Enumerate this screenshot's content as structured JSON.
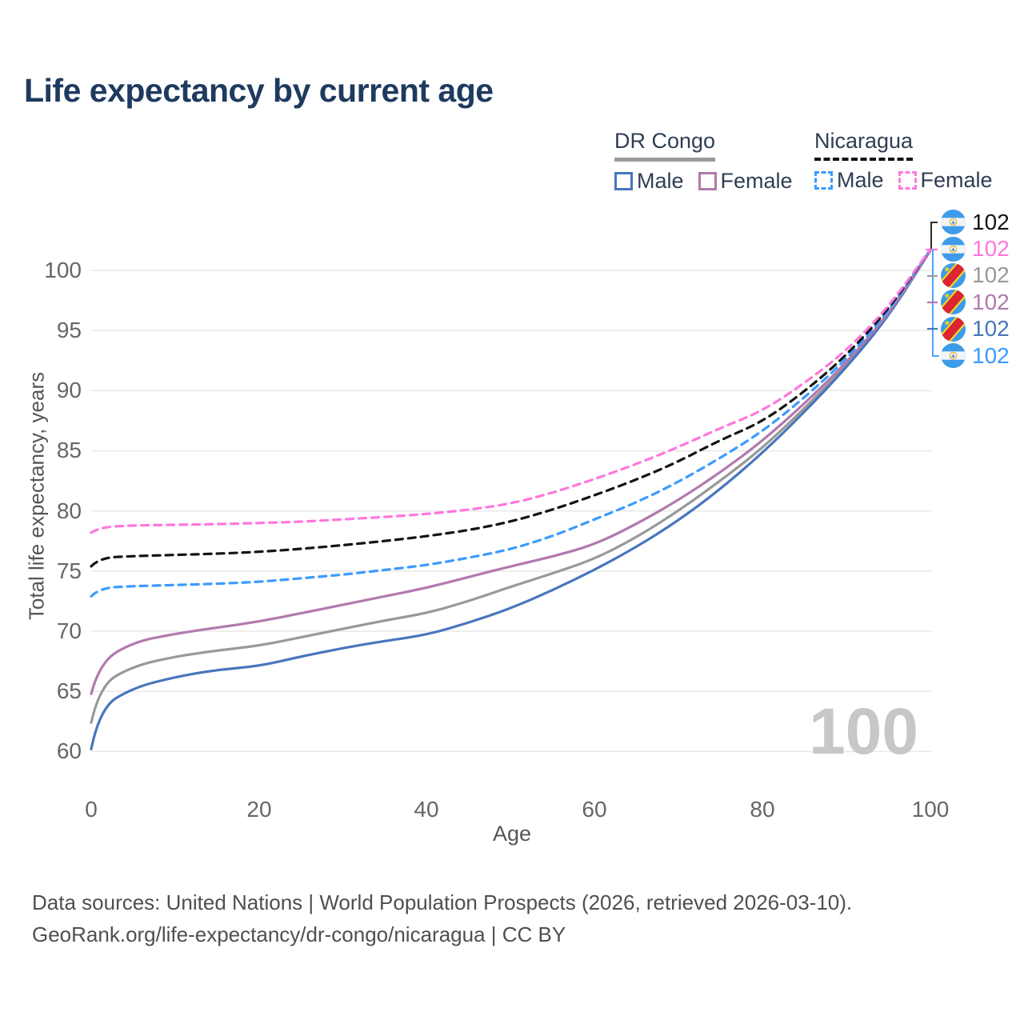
{
  "header": {
    "title": "Life expectancy by current age"
  },
  "legend": {
    "groups": [
      {
        "label": "DR Congo",
        "line_style": "solid",
        "underline_color": "#9a9a9a",
        "items": [
          {
            "label": "Male",
            "color": "#4876bd"
          },
          {
            "label": "Female",
            "color": "#b279ae"
          }
        ]
      },
      {
        "label": "Nicaragua",
        "line_style": "dashed",
        "underline_color": "#141414",
        "items": [
          {
            "label": "Male",
            "color": "#3b9bff"
          },
          {
            "label": "Female",
            "color": "#ff77dd"
          }
        ]
      }
    ]
  },
  "chart_data": {
    "type": "line",
    "title": "Life expectancy by current age",
    "xlabel": "Age",
    "ylabel": "Total life expectancy, years",
    "xlim": [
      0,
      100
    ],
    "ylim": [
      60,
      100
    ],
    "grid": "horizontal",
    "legend_position": "top-right",
    "x_ticks": [
      0,
      20,
      40,
      60,
      80,
      100
    ],
    "y_ticks": [
      100,
      95,
      90,
      85,
      80,
      75,
      70,
      65,
      60
    ],
    "watermark": "100",
    "x": [
      0,
      1,
      5,
      10,
      15,
      20,
      25,
      30,
      35,
      40,
      45,
      50,
      55,
      60,
      65,
      70,
      75,
      80,
      85,
      90,
      95,
      100
    ],
    "series": [
      {
        "name": "DR Congo Both sexes",
        "country": "DR Congo",
        "sex": "Both",
        "color": "#999999",
        "dash": "solid",
        "values": [
          62.4,
          65.5,
          67.1,
          67.9,
          68.4,
          68.8,
          69.5,
          70.2,
          70.9,
          71.5,
          72.5,
          73.7,
          74.8,
          76.0,
          77.8,
          80.0,
          82.5,
          85.2,
          88.5,
          92.1,
          96.2,
          101.6
        ]
      },
      {
        "name": "DR Congo Male",
        "country": "DR Congo",
        "sex": "Male",
        "color": "#4876bd",
        "dash": "solid",
        "values": [
          60.2,
          63.6,
          65.3,
          66.2,
          66.8,
          67.1,
          67.9,
          68.6,
          69.2,
          69.7,
          70.7,
          71.9,
          73.4,
          75.1,
          77.0,
          79.2,
          81.8,
          84.8,
          88.2,
          91.9,
          96.1,
          101.6
        ]
      },
      {
        "name": "DR Congo Female",
        "country": "DR Congo",
        "sex": "Female",
        "color": "#b279ae",
        "dash": "solid",
        "values": [
          64.8,
          67.4,
          69.1,
          69.8,
          70.3,
          70.8,
          71.5,
          72.2,
          72.9,
          73.6,
          74.5,
          75.4,
          76.2,
          77.2,
          78.9,
          80.9,
          83.2,
          85.8,
          88.9,
          92.3,
          96.3,
          101.6
        ]
      },
      {
        "name": "Nicaragua Male",
        "country": "Nicaragua",
        "sex": "Male",
        "color": "#3b9bff",
        "dash": "dashed",
        "values": [
          72.9,
          73.6,
          73.75,
          73.85,
          73.95,
          74.1,
          74.4,
          74.7,
          75.1,
          75.5,
          76.1,
          76.8,
          77.9,
          79.3,
          80.7,
          82.4,
          84.4,
          86.6,
          89.4,
          92.6,
          96.5,
          101.7
        ]
      },
      {
        "name": "Nicaragua Both sexes",
        "country": "Nicaragua",
        "sex": "Both",
        "color": "#141414",
        "dash": "dashed",
        "values": [
          75.4,
          76.1,
          76.25,
          76.35,
          76.45,
          76.6,
          76.85,
          77.15,
          77.5,
          77.9,
          78.4,
          79.1,
          80.1,
          81.3,
          82.6,
          84.1,
          85.9,
          87.4,
          89.9,
          92.9,
          96.7,
          101.7
        ]
      },
      {
        "name": "Nicaragua Female",
        "country": "Nicaragua",
        "sex": "Female",
        "color": "#ff77dd",
        "dash": "dashed",
        "values": [
          78.2,
          78.65,
          78.8,
          78.85,
          78.9,
          79.0,
          79.1,
          79.3,
          79.5,
          79.75,
          80.1,
          80.6,
          81.5,
          82.65,
          83.9,
          85.3,
          86.9,
          88.3,
          90.6,
          93.3,
          96.9,
          101.7
        ]
      }
    ],
    "end_labels": [
      {
        "flag": "nicaragua",
        "series": "Nicaragua Both sexes",
        "value": "102",
        "color": "#141414"
      },
      {
        "flag": "nicaragua",
        "series": "Nicaragua Female",
        "value": "102",
        "color": "#ff77dd"
      },
      {
        "flag": "dr-congo",
        "series": "DR Congo Both sexes",
        "value": "102",
        "color": "#999999"
      },
      {
        "flag": "dr-congo",
        "series": "DR Congo Female",
        "value": "102",
        "color": "#b279ae"
      },
      {
        "flag": "dr-congo",
        "series": "DR Congo Male",
        "value": "102",
        "color": "#4876bd"
      },
      {
        "flag": "nicaragua",
        "series": "Nicaragua Male",
        "value": "102",
        "color": "#3b9bff"
      }
    ]
  },
  "footer": {
    "line1": "Data sources: United Nations | World Population Prospects (2026, retrieved 2026-03-10).",
    "line2": "GeoRank.org/life-expectancy/dr-congo/nicaragua | CC BY"
  }
}
